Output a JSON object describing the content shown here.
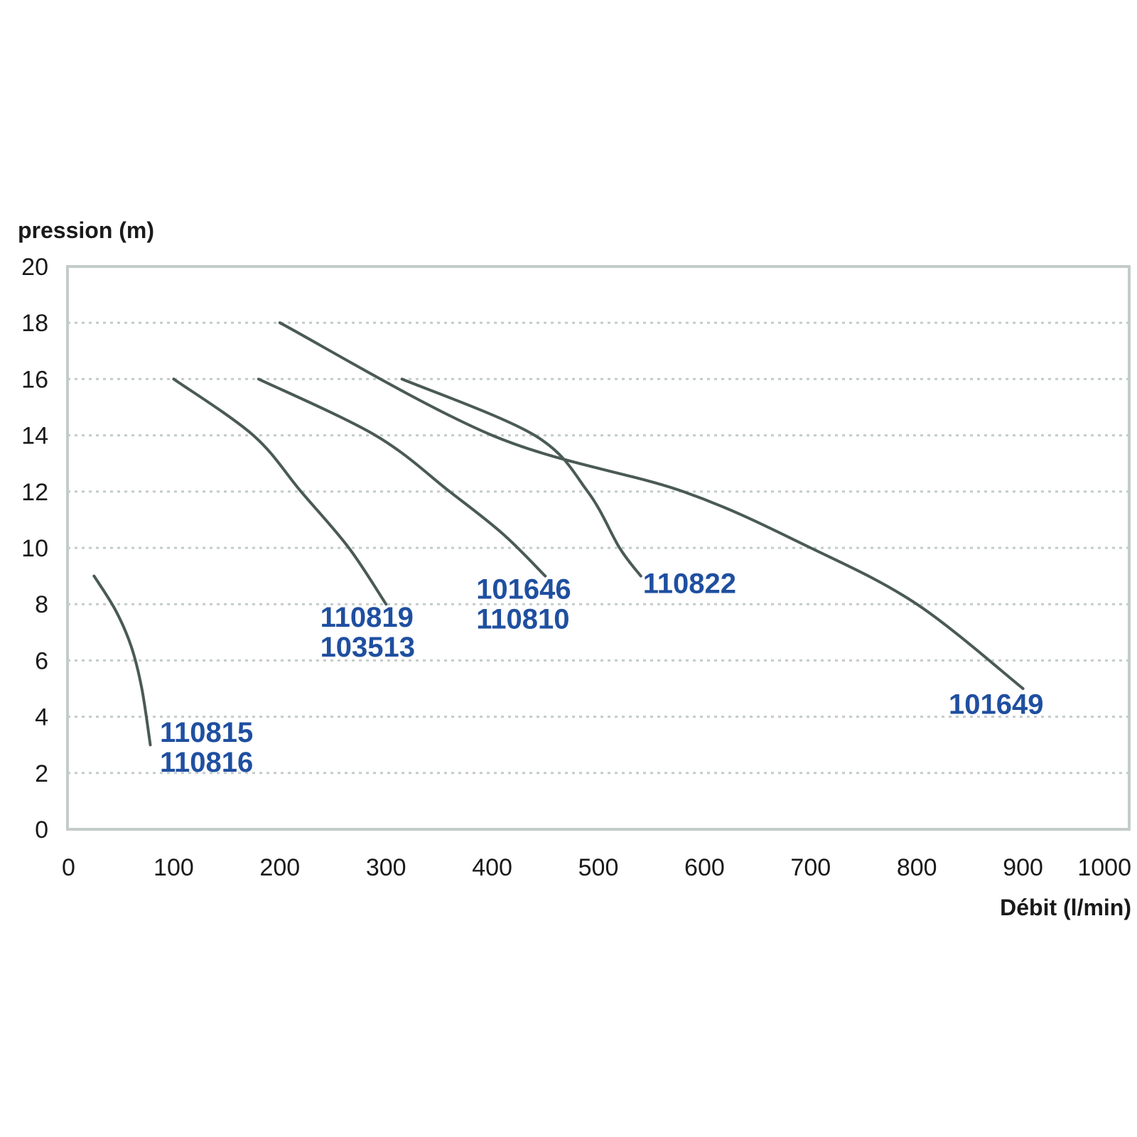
{
  "chart_data": {
    "type": "line",
    "ylabel": "pression (m)",
    "xlabel": "Débit (l/min)",
    "xlim": [
      0,
      1000
    ],
    "ylim": [
      0,
      20
    ],
    "x_ticks": [
      0,
      100,
      200,
      300,
      400,
      500,
      600,
      700,
      800,
      900,
      1000
    ],
    "y_ticks": [
      0,
      2,
      4,
      6,
      8,
      10,
      12,
      14,
      16,
      18,
      20
    ],
    "grid": "horizontal-dotted",
    "line_color": "#4a5a55",
    "label_color": "#1f4fa0",
    "series": [
      {
        "labels": [
          "110815",
          "110816"
        ],
        "points": [
          [
            25,
            9
          ],
          [
            45,
            7.8
          ],
          [
            60,
            6.5
          ],
          [
            70,
            5
          ],
          [
            78,
            3
          ]
        ],
        "label_at": [
          87,
          3.1
        ]
      },
      {
        "labels": [
          "110819",
          "103513"
        ],
        "points": [
          [
            100,
            16
          ],
          [
            175,
            14
          ],
          [
            220,
            12
          ],
          [
            265,
            10
          ],
          [
            300,
            8
          ]
        ],
        "label_at": [
          238,
          7.2
        ]
      },
      {
        "labels": [
          "101646",
          "110810"
        ],
        "points": [
          [
            180,
            16
          ],
          [
            290,
            14
          ],
          [
            360,
            12
          ],
          [
            410,
            10.5
          ],
          [
            450,
            9
          ]
        ],
        "label_at": [
          385,
          8.2
        ]
      },
      {
        "labels": [
          "110822"
        ],
        "points": [
          [
            315,
            16
          ],
          [
            440,
            14
          ],
          [
            490,
            12
          ],
          [
            520,
            10
          ],
          [
            540,
            9
          ]
        ],
        "label_at": [
          542,
          8.4
        ]
      },
      {
        "labels": [
          "101649"
        ],
        "points": [
          [
            200,
            18
          ],
          [
            400,
            14
          ],
          [
            580,
            12
          ],
          [
            700,
            10
          ],
          [
            800,
            8
          ],
          [
            900,
            5
          ]
        ],
        "label_at": [
          830,
          4.1
        ]
      }
    ]
  }
}
